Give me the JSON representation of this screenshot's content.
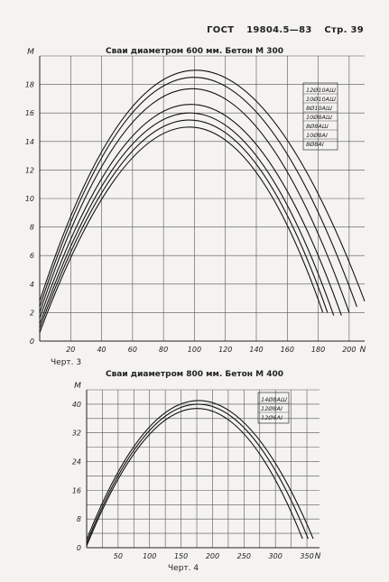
{
  "header": {
    "left": "ГОСТ",
    "middle": "19804.5—83",
    "right": "Стр. 39"
  },
  "captions": {
    "fig3": "Черт. 3",
    "fig4": "Черт. 4"
  },
  "chart_data": [
    {
      "type": "line",
      "title": "Сваи диаметром 600 мм. Бетон М 300",
      "ylabel": "M",
      "xlabel": "N",
      "xlim": [
        0,
        210
      ],
      "ylim": [
        0,
        20
      ],
      "x_ticks": [
        20,
        40,
        60,
        80,
        100,
        120,
        140,
        160,
        180,
        200
      ],
      "y_ticks": [
        0,
        2,
        4,
        6,
        8,
        10,
        12,
        14,
        16,
        18
      ],
      "grid": true,
      "legend_position": "top-right",
      "series": [
        {
          "name": "12Ø10АШ",
          "points": [
            [
              0,
              2.8
            ],
            [
              97,
              19.0
            ],
            [
              210,
              2.8
            ]
          ]
        },
        {
          "name": "10Ø10АШ",
          "points": [
            [
              0,
              2.4
            ],
            [
              97,
              18.5
            ],
            [
              205,
              2.4
            ]
          ]
        },
        {
          "name": "8Ø10АШ",
          "points": [
            [
              0,
              2.0
            ],
            [
              97,
              17.7
            ],
            [
              200,
              2.0
            ]
          ]
        },
        {
          "name": "10Ø8АШ",
          "points": [
            [
              0,
              1.6
            ],
            [
              97,
              16.6
            ],
            [
              195,
              1.8
            ]
          ]
        },
        {
          "name": "8Ø8АШ",
          "points": [
            [
              0,
              1.2
            ],
            [
              97,
              16.0
            ],
            [
              190,
              1.8
            ]
          ]
        },
        {
          "name": "10Ø8АI",
          "points": [
            [
              0,
              0.9
            ],
            [
              97,
              15.5
            ],
            [
              186,
              2.0
            ]
          ]
        },
        {
          "name": "8Ø8АI",
          "points": [
            [
              0,
              0.6
            ],
            [
              97,
              15.0
            ],
            [
              183,
              2.0
            ]
          ]
        }
      ]
    },
    {
      "type": "line",
      "title": "Сваи диаметром 800 мм. Бетон М 400",
      "ylabel": "M",
      "xlabel": "N",
      "xlim": [
        0,
        370
      ],
      "ylim": [
        0,
        44
      ],
      "x_ticks": [
        50,
        100,
        150,
        200,
        250,
        300,
        350
      ],
      "y_ticks": [
        0,
        8,
        16,
        24,
        32,
        40
      ],
      "grid": true,
      "legend_position": "top-right",
      "series": [
        {
          "name": "14Ø8АШ",
          "points": [
            [
              0,
              2.2
            ],
            [
              175,
              41.0
            ],
            [
              360,
              2.5
            ]
          ]
        },
        {
          "name": "12Ø8АI",
          "points": [
            [
              0,
              1.2
            ],
            [
              175,
              40.0
            ],
            [
              352,
              2.5
            ]
          ]
        },
        {
          "name": "12Ø6АI",
          "points": [
            [
              0,
              0.5
            ],
            [
              175,
              38.8
            ],
            [
              343,
              2.5
            ]
          ]
        }
      ]
    }
  ]
}
